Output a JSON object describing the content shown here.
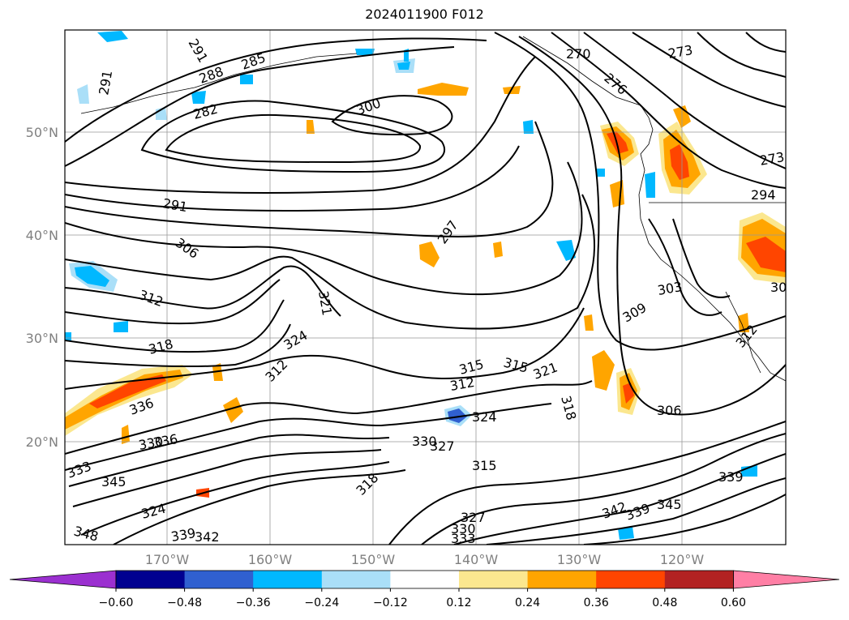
{
  "title": "2024011900 F012",
  "map": {
    "lat_labels": [
      "50°N",
      "40°N",
      "30°N",
      "20°N"
    ],
    "lon_labels": [
      "170°W",
      "160°W",
      "150°W",
      "140°W",
      "130°W",
      "120°W"
    ],
    "contour_labels": [
      "291",
      "291",
      "288",
      "285",
      "282",
      "270",
      "273",
      "276",
      "273",
      "294",
      "300",
      "291",
      "297",
      "306",
      "312",
      "318",
      "324",
      "321",
      "303",
      "309",
      "312",
      "315",
      "315",
      "312",
      "321",
      "318",
      "324",
      "306",
      "327",
      "330",
      "336",
      "336",
      "330",
      "333",
      "345",
      "342",
      "339",
      "345",
      "348",
      "339",
      "342",
      "324",
      "318",
      "327",
      "330",
      "333",
      "315",
      "312",
      "30",
      "339"
    ],
    "anomaly_palette": {
      "purple": "#9b30d0",
      "navy": "#000090",
      "royal_blue": "#3060d0",
      "deep_sky": "#00b8ff",
      "light_blue": "#aadff8",
      "white": "#ffffff",
      "khaki": "#fbe78f",
      "orange": "#ffa500",
      "orange_red": "#ff4500",
      "firebrick": "#b22222",
      "pink": "#ff7fa5"
    }
  },
  "colorbar": {
    "ticks": [
      "−0.60",
      "−0.48",
      "−0.36",
      "−0.24",
      "−0.12",
      "0.12",
      "0.24",
      "0.36",
      "0.48",
      "0.60"
    ],
    "colors": [
      "#9b30d0",
      "#000090",
      "#3060d0",
      "#00b8ff",
      "#aadff8",
      "#ffffff",
      "#fbe78f",
      "#ffa500",
      "#ff4500",
      "#b22222",
      "#ff7fa5"
    ]
  }
}
